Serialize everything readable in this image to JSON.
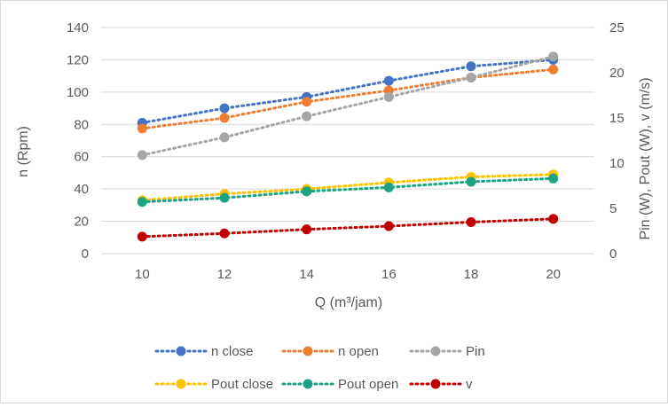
{
  "chart_data": {
    "type": "line",
    "title": "",
    "xlabel": "Q (m³/jam)",
    "ylabel_left": "n (Rpm)",
    "ylabel_right": "Pin (W), Pout (W), v (m/s)",
    "x": [
      10,
      12,
      14,
      16,
      18,
      20
    ],
    "x_ticks": [
      "10",
      "12",
      "14",
      "16",
      "18",
      "20"
    ],
    "xlim": [
      9,
      21
    ],
    "ylim_left": [
      0,
      140
    ],
    "ylim_right": [
      0,
      25
    ],
    "left_ticks": [
      "0",
      "20",
      "40",
      "60",
      "80",
      "100",
      "120",
      "140"
    ],
    "right_ticks": [
      "0",
      "5",
      "10",
      "15",
      "20",
      "25"
    ],
    "grid": true,
    "legend_position": "bottom",
    "series": [
      {
        "name": "n close",
        "axis": "left",
        "color": "#4472c4",
        "values": [
          81,
          90,
          97,
          107,
          116,
          120
        ]
      },
      {
        "name": "n open",
        "axis": "left",
        "color": "#ed7d31",
        "values": [
          77.5,
          84,
          94,
          101,
          109,
          114
        ]
      },
      {
        "name": "Pin",
        "axis": "left",
        "color": "#a5a5a5",
        "values": [
          61,
          72,
          85,
          97,
          109,
          122
        ]
      },
      {
        "name": "Pout close",
        "axis": "left",
        "color": "#ffc000",
        "values": [
          33,
          37,
          40,
          44,
          47.5,
          49
        ]
      },
      {
        "name": "Pout open",
        "axis": "left",
        "color": "#1ba383",
        "values": [
          32,
          34.5,
          38.5,
          41,
          44.5,
          46.5
        ]
      },
      {
        "name": "v",
        "axis": "left",
        "color": "#c00000",
        "values": [
          10.5,
          12.5,
          15,
          17,
          19.5,
          21.5
        ]
      }
    ]
  }
}
